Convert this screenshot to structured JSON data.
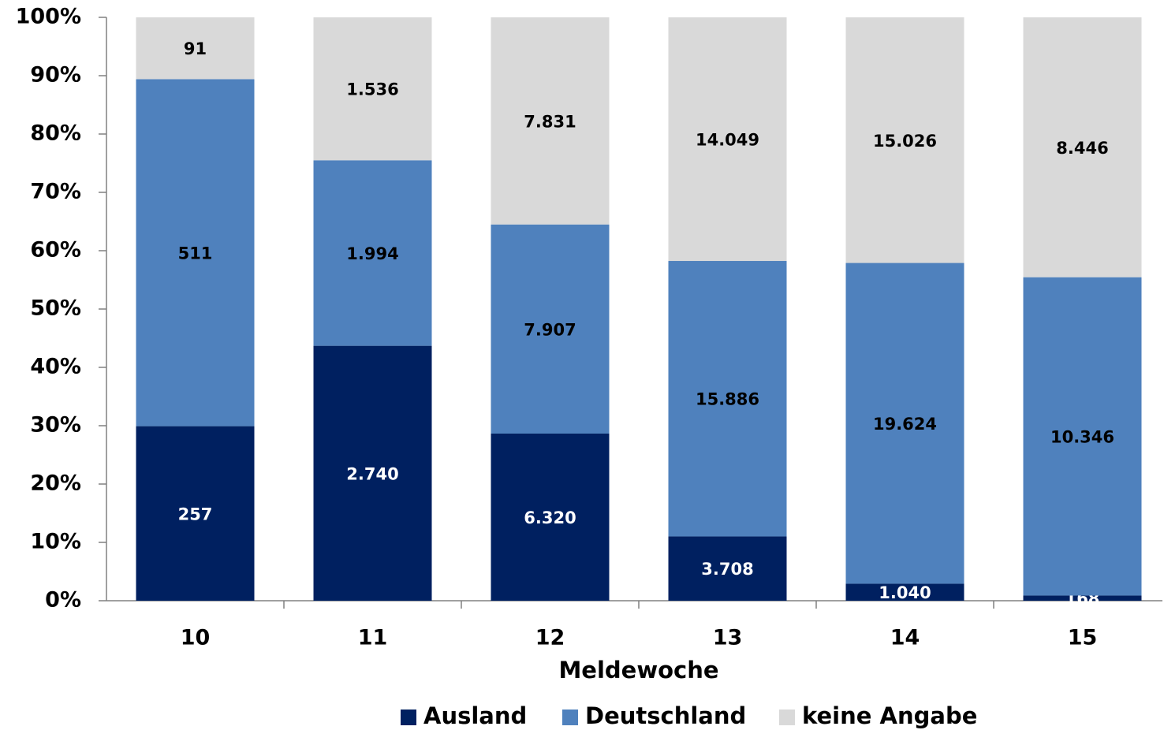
{
  "chart_data": {
    "type": "bar",
    "stacked": "percent",
    "x_label": "Meldewoche",
    "categories": [
      "10",
      "11",
      "12",
      "13",
      "14",
      "15"
    ],
    "series": [
      {
        "name": "Ausland",
        "color": "#002060",
        "label_color": "#ffffff",
        "values": [
          257,
          2740,
          6320,
          3708,
          1040,
          168
        ],
        "value_labels": [
          "257",
          "2.740",
          "6.320",
          "3.708",
          "1.040",
          "168"
        ]
      },
      {
        "name": "Deutschland",
        "color": "#4f81bd",
        "label_color": "#000000",
        "values": [
          511,
          1994,
          7907,
          15886,
          19624,
          10346
        ],
        "value_labels": [
          "511",
          "1.994",
          "7.907",
          "15.886",
          "19.624",
          "10.346"
        ]
      },
      {
        "name": "keine Angabe",
        "color": "#d9d9d9",
        "label_color": "#000000",
        "values": [
          91,
          1536,
          7831,
          14049,
          15026,
          8446
        ],
        "value_labels": [
          "91",
          "1.536",
          "7.831",
          "14.049",
          "15.026",
          "8.446"
        ]
      }
    ],
    "ylim": [
      0,
      100
    ],
    "yticks": [
      {
        "value": 0,
        "label": "0%"
      },
      {
        "value": 10,
        "label": "10%"
      },
      {
        "value": 20,
        "label": "20%"
      },
      {
        "value": 30,
        "label": "30%"
      },
      {
        "value": 40,
        "label": "40%"
      },
      {
        "value": 50,
        "label": "50%"
      },
      {
        "value": 60,
        "label": "60%"
      },
      {
        "value": 70,
        "label": "70%"
      },
      {
        "value": 80,
        "label": "80%"
      },
      {
        "value": 90,
        "label": "90%"
      },
      {
        "value": 100,
        "label": "100%"
      }
    ],
    "legend": "bottom"
  }
}
